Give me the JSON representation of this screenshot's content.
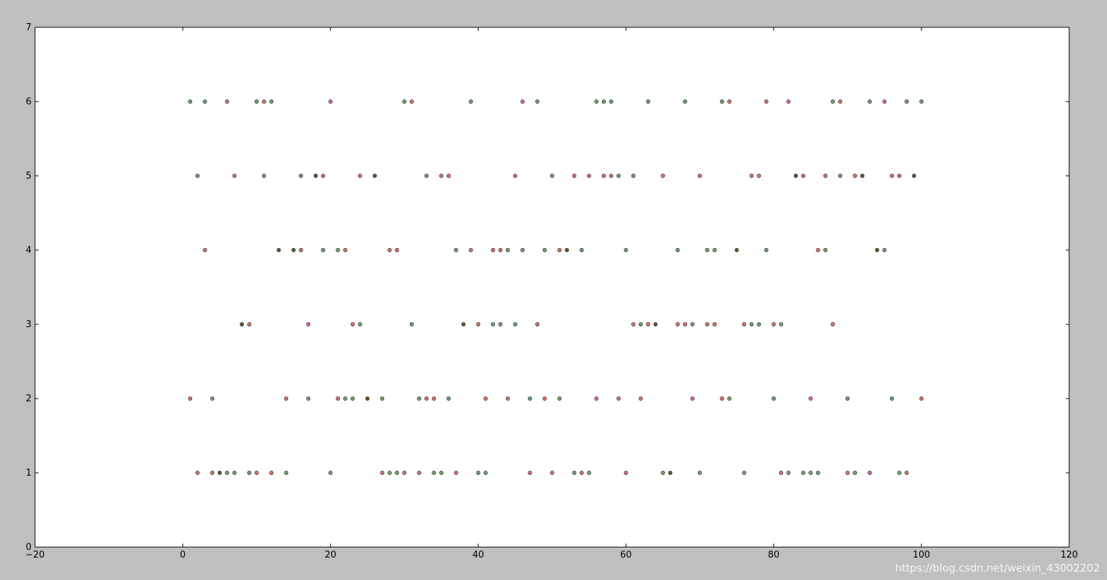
{
  "watermark": "https://blog.csdn.net/weixin_43002202",
  "chart_data": {
    "type": "scatter",
    "title": "",
    "xlabel": "",
    "ylabel": "",
    "xlim": [
      -20,
      120
    ],
    "ylim": [
      0,
      7
    ],
    "xticks": [
      -20,
      0,
      20,
      40,
      60,
      80,
      100,
      120
    ],
    "yticks": [
      0,
      1,
      2,
      3,
      4,
      5,
      6,
      7
    ],
    "xtick_labels": [
      "−20",
      "0",
      "20",
      "40",
      "60",
      "80",
      "100",
      "120"
    ],
    "ytick_labels": [
      "0",
      "1",
      "2",
      "3",
      "4",
      "5",
      "6",
      "7"
    ],
    "grid": false,
    "colors": {
      "red": "#d9716f",
      "green": "#6fa26f",
      "dark": "#5a5a2e"
    },
    "series": [
      {
        "color": "red",
        "points": [
          [
            2,
            1
          ],
          [
            4,
            1
          ],
          [
            10,
            1
          ],
          [
            12,
            1
          ],
          [
            27,
            1
          ],
          [
            30,
            1
          ],
          [
            32,
            1
          ],
          [
            37,
            1
          ],
          [
            47,
            1
          ],
          [
            50,
            1
          ],
          [
            54,
            1
          ],
          [
            60,
            1
          ],
          [
            81,
            1
          ],
          [
            90,
            1
          ],
          [
            93,
            1
          ],
          [
            98,
            1
          ],
          [
            1,
            2
          ],
          [
            14,
            2
          ],
          [
            21,
            2
          ],
          [
            33,
            2
          ],
          [
            34,
            2
          ],
          [
            41,
            2
          ],
          [
            44,
            2
          ],
          [
            49,
            2
          ],
          [
            56,
            2
          ],
          [
            59,
            2
          ],
          [
            62,
            2
          ],
          [
            69,
            2
          ],
          [
            73,
            2
          ],
          [
            85,
            2
          ],
          [
            100,
            2
          ],
          [
            9,
            3
          ],
          [
            17,
            3
          ],
          [
            23,
            3
          ],
          [
            40,
            3
          ],
          [
            48,
            3
          ],
          [
            61,
            3
          ],
          [
            63,
            3
          ],
          [
            67,
            3
          ],
          [
            68,
            3
          ],
          [
            71,
            3
          ],
          [
            72,
            3
          ],
          [
            76,
            3
          ],
          [
            80,
            3
          ],
          [
            88,
            3
          ],
          [
            3,
            4
          ],
          [
            16,
            4
          ],
          [
            22,
            4
          ],
          [
            28,
            4
          ],
          [
            29,
            4
          ],
          [
            39,
            4
          ],
          [
            42,
            4
          ],
          [
            43,
            4
          ],
          [
            51,
            4
          ],
          [
            86,
            4
          ],
          [
            7,
            5
          ],
          [
            19,
            5
          ],
          [
            24,
            5
          ],
          [
            35,
            5
          ],
          [
            36,
            5
          ],
          [
            45,
            5
          ],
          [
            53,
            5
          ],
          [
            55,
            5
          ],
          [
            57,
            5
          ],
          [
            58,
            5
          ],
          [
            65,
            5
          ],
          [
            70,
            5
          ],
          [
            77,
            5
          ],
          [
            78,
            5
          ],
          [
            84,
            5
          ],
          [
            87,
            5
          ],
          [
            91,
            5
          ],
          [
            96,
            5
          ],
          [
            97,
            5
          ],
          [
            6,
            6
          ],
          [
            11,
            6
          ],
          [
            20,
            6
          ],
          [
            31,
            6
          ],
          [
            46,
            6
          ],
          [
            74,
            6
          ],
          [
            79,
            6
          ],
          [
            82,
            6
          ],
          [
            89,
            6
          ],
          [
            95,
            6
          ]
        ]
      },
      {
        "color": "green",
        "points": [
          [
            6,
            1
          ],
          [
            7,
            1
          ],
          [
            9,
            1
          ],
          [
            14,
            1
          ],
          [
            20,
            1
          ],
          [
            28,
            1
          ],
          [
            29,
            1
          ],
          [
            34,
            1
          ],
          [
            35,
            1
          ],
          [
            40,
            1
          ],
          [
            41,
            1
          ],
          [
            53,
            1
          ],
          [
            55,
            1
          ],
          [
            65,
            1
          ],
          [
            70,
            1
          ],
          [
            76,
            1
          ],
          [
            82,
            1
          ],
          [
            84,
            1
          ],
          [
            85,
            1
          ],
          [
            86,
            1
          ],
          [
            91,
            1
          ],
          [
            97,
            1
          ],
          [
            4,
            2
          ],
          [
            17,
            2
          ],
          [
            22,
            2
          ],
          [
            23,
            2
          ],
          [
            27,
            2
          ],
          [
            32,
            2
          ],
          [
            36,
            2
          ],
          [
            47,
            2
          ],
          [
            51,
            2
          ],
          [
            74,
            2
          ],
          [
            80,
            2
          ],
          [
            90,
            2
          ],
          [
            96,
            2
          ],
          [
            24,
            3
          ],
          [
            31,
            3
          ],
          [
            42,
            3
          ],
          [
            43,
            3
          ],
          [
            45,
            3
          ],
          [
            62,
            3
          ],
          [
            69,
            3
          ],
          [
            77,
            3
          ],
          [
            78,
            3
          ],
          [
            81,
            3
          ],
          [
            19,
            4
          ],
          [
            21,
            4
          ],
          [
            37,
            4
          ],
          [
            44,
            4
          ],
          [
            46,
            4
          ],
          [
            49,
            4
          ],
          [
            54,
            4
          ],
          [
            60,
            4
          ],
          [
            67,
            4
          ],
          [
            71,
            4
          ],
          [
            72,
            4
          ],
          [
            79,
            4
          ],
          [
            87,
            4
          ],
          [
            95,
            4
          ],
          [
            2,
            5
          ],
          [
            11,
            5
          ],
          [
            16,
            5
          ],
          [
            33,
            5
          ],
          [
            50,
            5
          ],
          [
            59,
            5
          ],
          [
            61,
            5
          ],
          [
            89,
            5
          ],
          [
            1,
            6
          ],
          [
            3,
            6
          ],
          [
            10,
            6
          ],
          [
            12,
            6
          ],
          [
            30,
            6
          ],
          [
            39,
            6
          ],
          [
            48,
            6
          ],
          [
            56,
            6
          ],
          [
            57,
            6
          ],
          [
            58,
            6
          ],
          [
            63,
            6
          ],
          [
            68,
            6
          ],
          [
            73,
            6
          ],
          [
            88,
            6
          ],
          [
            93,
            6
          ],
          [
            98,
            6
          ],
          [
            100,
            6
          ]
        ]
      },
      {
        "color": "dark",
        "points": [
          [
            5,
            1
          ],
          [
            66,
            1
          ],
          [
            25,
            2
          ],
          [
            8,
            3
          ],
          [
            38,
            3
          ],
          [
            64,
            3
          ],
          [
            13,
            4
          ],
          [
            15,
            4
          ],
          [
            52,
            4
          ],
          [
            75,
            4
          ],
          [
            94,
            4
          ],
          [
            18,
            5
          ],
          [
            26,
            5
          ],
          [
            83,
            5
          ],
          [
            92,
            5
          ],
          [
            99,
            5
          ]
        ]
      }
    ]
  }
}
